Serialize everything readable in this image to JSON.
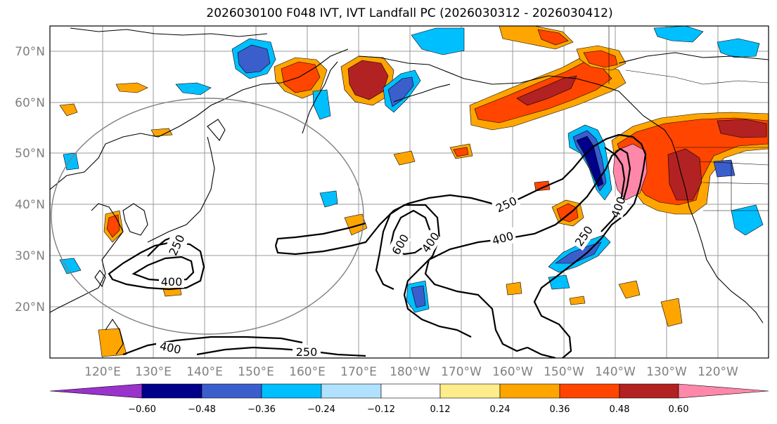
{
  "title": "2026030100 F048 IVT, IVT Landfall PC (2026030312 - 2026030412)",
  "lat_labels": [
    "70°N",
    "60°N",
    "50°N",
    "40°N",
    "30°N",
    "20°N"
  ],
  "lon_labels": [
    "120°E",
    "130°E",
    "140°E",
    "150°E",
    "160°E",
    "170°E",
    "180°W",
    "170°W",
    "160°W",
    "150°W",
    "140°W",
    "130°W",
    "120°W"
  ],
  "contour_labels": [
    "250",
    "400",
    "600",
    "400",
    "250",
    "400",
    "250",
    "400",
    "400",
    "250"
  ],
  "colorbar": {
    "ticks": [
      "−0.60",
      "−0.48",
      "−0.36",
      "−0.24",
      "−0.12",
      "0.12",
      "0.24",
      "0.36",
      "0.48",
      "0.60"
    ],
    "colors": {
      "lt_neg060": "#9933cc",
      "neg060_neg048": "#00008b",
      "neg048_neg036": "#3a5fcd",
      "neg036_neg024": "#00bfff",
      "neg024_neg012": "#b0e2ff",
      "neutral": "#ffffff",
      "pos012_pos024": "#ffec8b",
      "pos024_pos036": "#ffa500",
      "pos036_pos048": "#ff4500",
      "pos048_pos060": "#b22222",
      "gt_pos060": "#ff88aa"
    }
  }
}
